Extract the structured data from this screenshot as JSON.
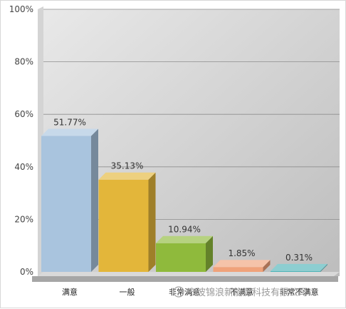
{
  "chart_data": {
    "type": "bar",
    "title": "",
    "xlabel": "",
    "ylabel": "",
    "ylim": [
      0,
      100
    ],
    "ytick_values": [
      0,
      20,
      40,
      60,
      80,
      100
    ],
    "ytick_labels": [
      "0%",
      "20%",
      "40%",
      "60%",
      "80%",
      "100%"
    ],
    "categories": [
      "满意",
      "一般",
      "非常满意",
      "不满意",
      "非常不满意"
    ],
    "values": [
      51.77,
      35.13,
      10.94,
      1.85,
      0.31
    ],
    "value_labels": [
      "51.77%",
      "35.13%",
      "10.94%",
      "1.85%",
      "0.31%"
    ],
    "grid": true,
    "bar_colors": [
      "#a9c4de",
      "#e3b63a",
      "#8fba3c",
      "#f0a27a",
      "#4fb4b8"
    ],
    "style": "3d"
  },
  "watermark": {
    "text": "宁波锦浪新能源科技有限公司",
    "icon": "wechat-icon"
  }
}
